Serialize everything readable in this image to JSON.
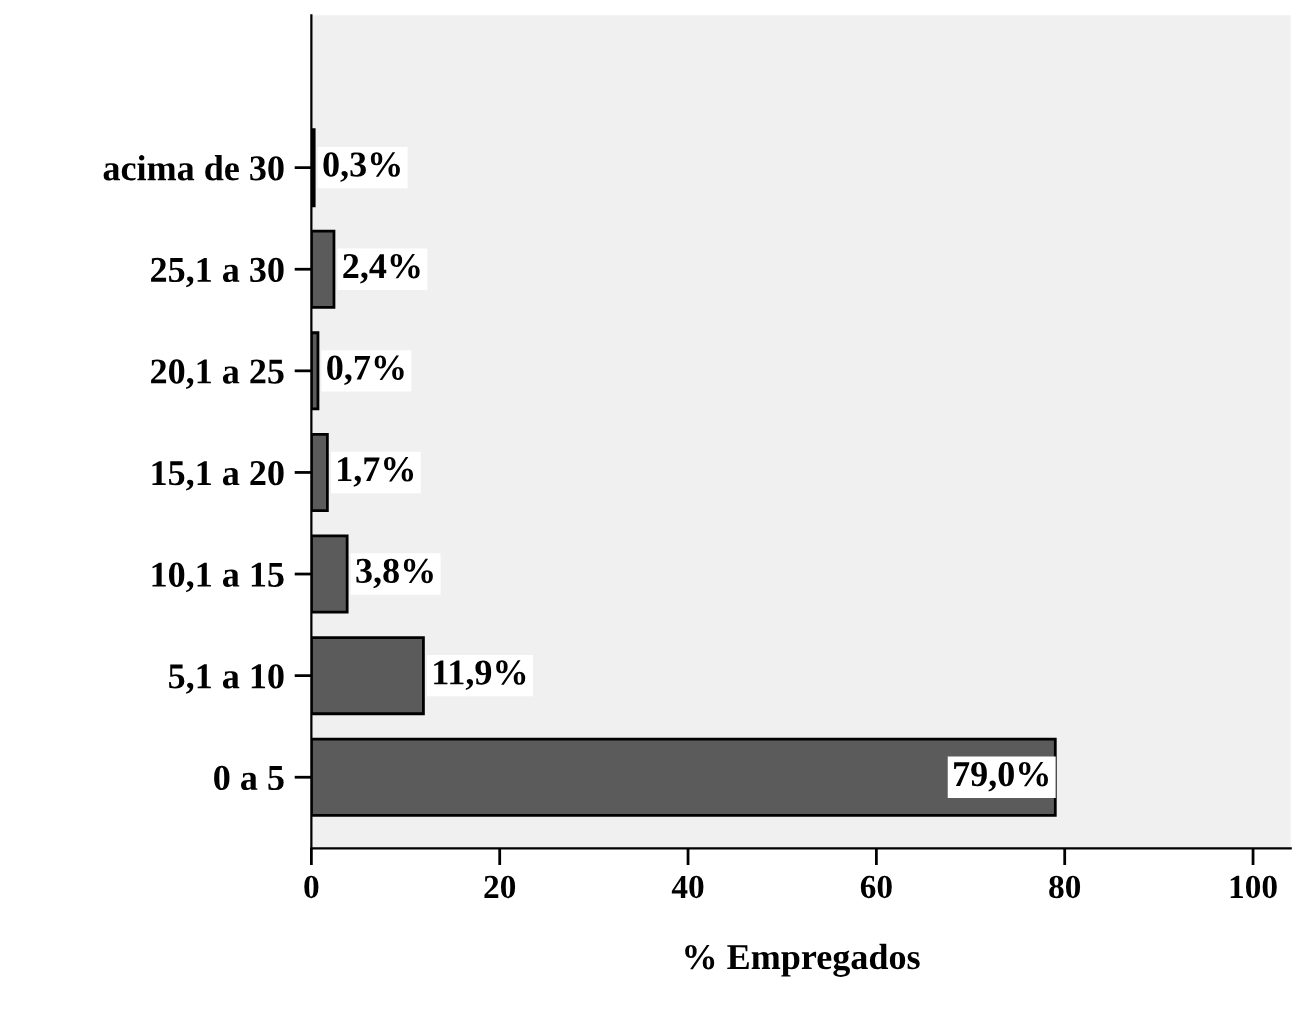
{
  "chart_data": {
    "type": "bar",
    "orientation": "horizontal",
    "xlabel": "% Empregados",
    "categories": [
      "acima de 30",
      "25,1 a 30",
      "20,1 a 25",
      "15,1 a 20",
      "10,1 a 15",
      "5,1 a 10",
      "0 a 5"
    ],
    "values": [
      0.3,
      2.4,
      0.7,
      1.7,
      3.8,
      11.9,
      79.0
    ],
    "value_labels": [
      "0,3%",
      "2,4%",
      "0,7%",
      "1,7%",
      "3,8%",
      "11,9%",
      "79,0%"
    ],
    "color": "#5b5b5b",
    "xlim": [
      0,
      104
    ],
    "xticks": [
      0,
      20,
      40,
      60,
      80,
      100
    ],
    "grid": false
  }
}
